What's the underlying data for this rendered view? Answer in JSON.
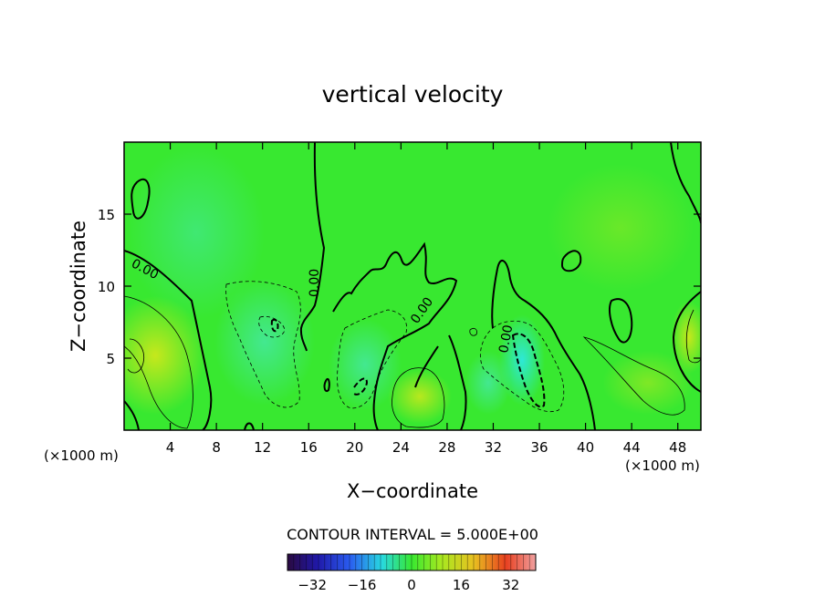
{
  "chart_data": {
    "type": "heatmap",
    "title": "vertical velocity",
    "xlabel": "X−coordinate",
    "ylabel": "Z−coordinate",
    "x_unit_label_left": "(×1000 m)",
    "x_unit_label_right": "(×1000 m)",
    "xlim": [
      0,
      50
    ],
    "ylim": [
      0,
      20
    ],
    "xticks": [
      4,
      8,
      12,
      16,
      20,
      24,
      28,
      32,
      36,
      40,
      44,
      48
    ],
    "yticks": [
      5,
      10,
      15
    ],
    "contour_labels": [
      "0.00",
      "0.00",
      "0.00",
      "0.00"
    ],
    "contour_interval_text": "CONTOUR INTERVAL = 5.000E+00",
    "colorbar": {
      "min": -40,
      "max": 40,
      "ticks": [
        -32,
        -16,
        0,
        16,
        32
      ],
      "tick_labels": [
        "−32",
        "−16",
        "0",
        "16",
        "32"
      ]
    },
    "colors": {
      "field_background": "#38e830",
      "positive_high": "#c8e81c",
      "negative_low": "#30e8d0"
    }
  }
}
